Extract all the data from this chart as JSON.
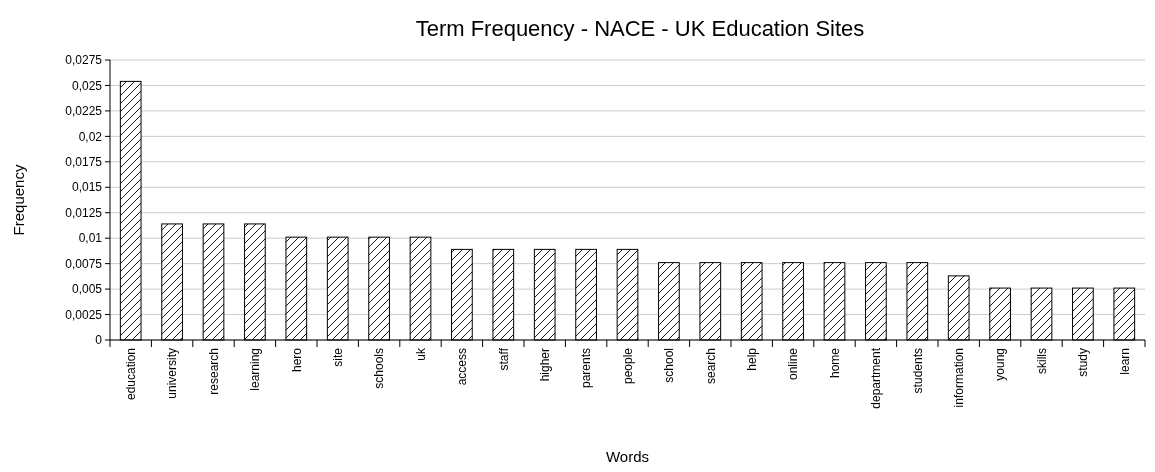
{
  "chart_data": {
    "type": "bar",
    "title": "Term Frequency - NACE - UK Education Sites",
    "xlabel": "Words",
    "ylabel": "Frequency",
    "categories": [
      "education",
      "university",
      "research",
      "learning",
      "hero",
      "site",
      "schools",
      "uk",
      "access",
      "staff",
      "higher",
      "parents",
      "people",
      "school",
      "search",
      "help",
      "online",
      "home",
      "department",
      "students",
      "information",
      "young",
      "skills",
      "study",
      "learn"
    ],
    "values": [
      0.0254,
      0.0114,
      0.0114,
      0.0114,
      0.0101,
      0.0101,
      0.0101,
      0.0101,
      0.0089,
      0.0089,
      0.0089,
      0.0089,
      0.0089,
      0.0076,
      0.0076,
      0.0076,
      0.0076,
      0.0076,
      0.0076,
      0.0076,
      0.0063,
      0.0051,
      0.0051,
      0.0051,
      0.0051
    ],
    "color": "#000000",
    "ylim": [
      0,
      0.0275
    ],
    "yticks": [
      0,
      {
        "value": 0.0025,
        "label": "0,0025"
      },
      {
        "value": 0.005,
        "label": "0,005"
      },
      {
        "value": 0.0075,
        "label": "0,0075"
      },
      {
        "value": 0.01,
        "label": "0,01"
      },
      {
        "value": 0.0125,
        "label": "0,0125"
      },
      {
        "value": 0.015,
        "label": "0,015"
      },
      {
        "value": 0.0175,
        "label": "0,0175"
      },
      {
        "value": 0.02,
        "label": "0,02"
      },
      {
        "value": 0.0225,
        "label": "0,0225"
      },
      {
        "value": 0.025,
        "label": "0,025"
      },
      {
        "value": 0.0275,
        "label": "0,0275"
      }
    ],
    "grid": "y"
  }
}
